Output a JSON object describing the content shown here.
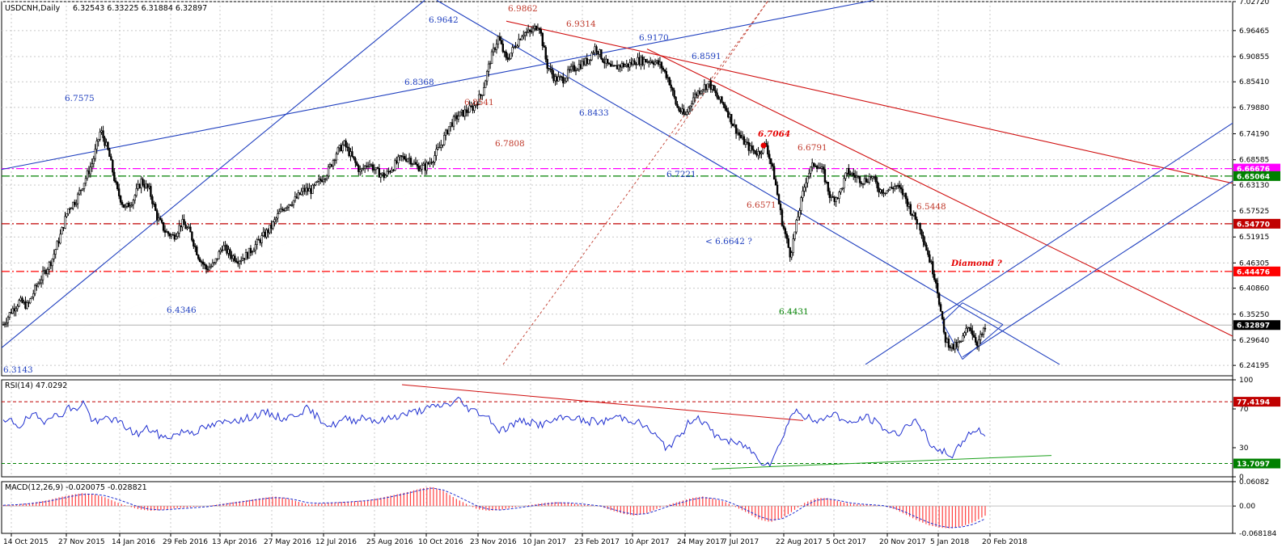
{
  "header": {
    "symbol": "USDCNH,Daily",
    "ohlc": "6.32543 6.33225 6.31884 6.32897",
    "rsi_label": "RSI(14) 47.0292",
    "macd_label": "MACD(12,26,9) -0.020075 -0.028821"
  },
  "chart_data": [
    {
      "type": "candlestick",
      "name": "price",
      "ylim": [
        6.2195,
        7.0272
      ],
      "yticks": [
        "7.02720",
        "6.96465",
        "6.90855",
        "6.85410",
        "6.79880",
        "6.74190",
        "6.68585",
        "6.63130",
        "6.57525",
        "6.51915",
        "6.46305",
        "6.40860",
        "6.35250",
        "6.29640",
        "6.24195"
      ],
      "xticks": [
        "14 Oct 2015",
        "27 Nov 2015",
        "14 Jan 2016",
        "29 Feb 2016",
        "13 Apr 2016",
        "27 May 2016",
        "12 Jul 2016",
        "25 Aug 2016",
        "10 Oct 2016",
        "23 Nov 2016",
        "10 Jan 2017",
        "23 Feb 2017",
        "10 Apr 2017",
        "24 May 2017",
        "7 Jul 2017",
        "22 Aug 2017",
        "5 Oct 2017",
        "20 Nov 2017",
        "5 Jan 2018",
        "20 Feb 2018"
      ],
      "close_path": [
        6.33,
        6.36,
        6.38,
        6.37,
        6.41,
        6.44,
        6.47,
        6.52,
        6.58,
        6.6,
        6.64,
        6.68,
        6.75,
        6.7,
        6.62,
        6.58,
        6.6,
        6.64,
        6.62,
        6.56,
        6.53,
        6.52,
        6.55,
        6.53,
        6.48,
        6.45,
        6.46,
        6.5,
        6.48,
        6.47,
        6.48,
        6.5,
        6.52,
        6.54,
        6.57,
        6.59,
        6.6,
        6.62,
        6.62,
        6.64,
        6.66,
        6.7,
        6.72,
        6.69,
        6.66,
        6.68,
        6.66,
        6.65,
        6.67,
        6.69,
        6.69,
        6.67,
        6.67,
        6.69,
        6.72,
        6.76,
        6.78,
        6.79,
        6.8,
        6.83,
        6.9,
        6.95,
        6.9,
        6.93,
        6.96,
        6.96,
        6.98,
        6.89,
        6.86,
        6.86,
        6.88,
        6.89,
        6.9,
        6.93,
        6.9,
        6.88,
        6.89,
        6.89,
        6.9,
        6.9,
        6.9,
        6.89,
        6.86,
        6.8,
        6.78,
        6.82,
        6.84,
        6.85,
        6.82,
        6.8,
        6.76,
        6.73,
        6.71,
        6.7,
        6.72,
        6.65,
        6.55,
        6.48,
        6.57,
        6.65,
        6.68,
        6.66,
        6.6,
        6.61,
        6.66,
        6.65,
        6.64,
        6.65,
        6.62,
        6.62,
        6.63,
        6.61,
        6.57,
        6.54,
        6.48,
        6.42,
        6.3,
        6.28,
        6.29,
        6.33,
        6.29,
        6.32
      ],
      "close_path_xrange": [
        "14 Oct 2015",
        "20 Feb 2018"
      ],
      "last_price": "6.32897",
      "horizontal_levels": [
        {
          "label": "6.66676",
          "value": 6.6668,
          "color": "#ff00ff",
          "style": "dash-dot",
          "badge_bg": "#ff00ff"
        },
        {
          "label": "6.65064",
          "value": 6.6506,
          "color": "#008000",
          "style": "dash-dot",
          "badge_bg": "#008000"
        },
        {
          "label": "6.54770",
          "value": 6.5477,
          "color": "#c00000",
          "style": "dash-dot",
          "badge_bg": "#c00000"
        },
        {
          "label": "6.44476",
          "value": 6.4448,
          "color": "#ff0000",
          "style": "dash-dot",
          "badge_bg": "#ff0000"
        }
      ],
      "annotations": [
        {
          "text": "6.9862",
          "color": "#c0392b"
        },
        {
          "text": "6.9642",
          "color": "#1f3fbf"
        },
        {
          "text": "6.9314",
          "color": "#c0392b"
        },
        {
          "text": "6.9170",
          "color": "#1f3fbf"
        },
        {
          "text": "6.8591",
          "color": "#1f3fbf"
        },
        {
          "text": "6.8368",
          "color": "#1f3fbf"
        },
        {
          "text": "6.8541",
          "color": "#c0392b"
        },
        {
          "text": "6.8433",
          "color": "#1f3fbf"
        },
        {
          "text": "6.7575",
          "color": "#1f3fbf"
        },
        {
          "text": "6.7808",
          "color": "#c0392b"
        },
        {
          "text": "6.7064",
          "color": "#e60000"
        },
        {
          "text": "6.6791",
          "color": "#c0392b"
        },
        {
          "text": "6.7221",
          "color": "#1f3fbf"
        },
        {
          "text": "6.6571",
          "color": "#c0392b"
        },
        {
          "text": "6.5448",
          "color": "#c0392b"
        },
        {
          "text": "< 6.6642 ?",
          "color": "#1f3fbf"
        },
        {
          "text": "Diamond ?",
          "color": "#e60000"
        },
        {
          "text": "6.4431",
          "color": "#008000"
        },
        {
          "text": "6.4346",
          "color": "#1f3fbf"
        },
        {
          "text": "6.3143",
          "color": "#1f3fbf"
        }
      ]
    },
    {
      "type": "line",
      "name": "RSI(14)",
      "ylim": [
        0,
        100
      ],
      "yticks": [
        "100",
        "70",
        "30",
        "0"
      ],
      "levels": [
        {
          "label": "77.4194",
          "value": 77.42,
          "color": "#c00000"
        },
        {
          "label": "13.7097",
          "value": 13.71,
          "color": "#008000"
        }
      ],
      "values": [
        55,
        58,
        52,
        60,
        63,
        57,
        65,
        61,
        72,
        68,
        78,
        60,
        55,
        62,
        58,
        54,
        47,
        44,
        50,
        46,
        40,
        42,
        45,
        48,
        46,
        50,
        52,
        55,
        57,
        60,
        58,
        62,
        64,
        66,
        63,
        60,
        62,
        66,
        70,
        64,
        58,
        52,
        56,
        60,
        58,
        62,
        60,
        57,
        59,
        62,
        64,
        66,
        68,
        70,
        72,
        74,
        75,
        80,
        72,
        68,
        65,
        60,
        48,
        50,
        55,
        58,
        56,
        54,
        55,
        58,
        60,
        62,
        60,
        56,
        58,
        56,
        60,
        62,
        60,
        58,
        54,
        48,
        40,
        30,
        36,
        44,
        58,
        62,
        54,
        44,
        40,
        36,
        34,
        32,
        24,
        16,
        14,
        28,
        50,
        68,
        65,
        60,
        55,
        62,
        66,
        60,
        54,
        58,
        62,
        58,
        52,
        46,
        44,
        52,
        58,
        50,
        36,
        24,
        26,
        22,
        34,
        46,
        48,
        45
      ],
      "values_xrange": [
        "14 Oct 2015",
        "20 Feb 2018"
      ]
    },
    {
      "type": "bar",
      "name": "MACD(12,26,9)",
      "ylim": [
        -0.068184,
        0.06082
      ],
      "yticks": [
        "0.06082",
        "0.00",
        "-0.068184"
      ],
      "histogram": [
        0.002,
        0.004,
        0.006,
        0.01,
        0.015,
        0.022,
        0.028,
        0.032,
        0.03,
        0.022,
        0.01,
        0.0,
        -0.008,
        -0.012,
        -0.01,
        -0.006,
        -0.004,
        -0.002,
        0.0,
        0.004,
        0.008,
        0.012,
        0.016,
        0.02,
        0.024,
        0.02,
        0.012,
        0.004,
        0.006,
        0.008,
        0.01,
        0.012,
        0.014,
        0.018,
        0.024,
        0.03,
        0.036,
        0.044,
        0.048,
        0.038,
        0.02,
        0.006,
        -0.008,
        -0.012,
        -0.01,
        -0.004,
        0.0,
        0.004,
        0.008,
        0.01,
        0.008,
        0.004,
        0.002,
        -0.002,
        -0.012,
        -0.02,
        -0.024,
        -0.018,
        -0.006,
        0.004,
        0.012,
        0.02,
        0.024,
        0.018,
        0.01,
        -0.004,
        -0.018,
        -0.034,
        -0.04,
        -0.03,
        -0.012,
        0.008,
        0.02,
        0.02,
        0.012,
        0.006,
        0.004,
        0.002,
        0.0,
        -0.008,
        -0.022,
        -0.036,
        -0.048,
        -0.054,
        -0.056,
        -0.05,
        -0.04,
        -0.024
      ],
      "signal": [
        0.002,
        0.003,
        0.005,
        0.008,
        0.012,
        0.018,
        0.024,
        0.029,
        0.03,
        0.026,
        0.018,
        0.008,
        -0.002,
        -0.008,
        -0.01,
        -0.008,
        -0.006,
        -0.004,
        -0.002,
        0.002,
        0.006,
        0.01,
        0.014,
        0.018,
        0.021,
        0.02,
        0.015,
        0.008,
        0.007,
        0.008,
        0.009,
        0.011,
        0.013,
        0.016,
        0.021,
        0.027,
        0.033,
        0.04,
        0.045,
        0.04,
        0.028,
        0.014,
        0.0,
        -0.008,
        -0.01,
        -0.007,
        -0.003,
        0.001,
        0.005,
        0.008,
        0.008,
        0.006,
        0.003,
        0.0,
        -0.008,
        -0.016,
        -0.021,
        -0.019,
        -0.01,
        0.0,
        0.008,
        0.016,
        0.021,
        0.019,
        0.013,
        0.002,
        -0.012,
        -0.026,
        -0.035,
        -0.032,
        -0.018,
        0.0,
        0.014,
        0.018,
        0.014,
        0.008,
        0.005,
        0.003,
        0.001,
        -0.005,
        -0.016,
        -0.029,
        -0.041,
        -0.05,
        -0.054,
        -0.052,
        -0.045,
        -0.032
      ],
      "values_xrange": [
        "14 Oct 2015",
        "20 Feb 2018"
      ]
    }
  ],
  "colors": {
    "bullish_candle": "#000000",
    "trendline_blue": "#1f3fbf",
    "trendline_red": "#d01010",
    "rsi_line": "#1f2fd0",
    "macd_hist": "#ff4040",
    "macd_signal": "#1f2fd0",
    "grid": "#c8c8c8"
  }
}
